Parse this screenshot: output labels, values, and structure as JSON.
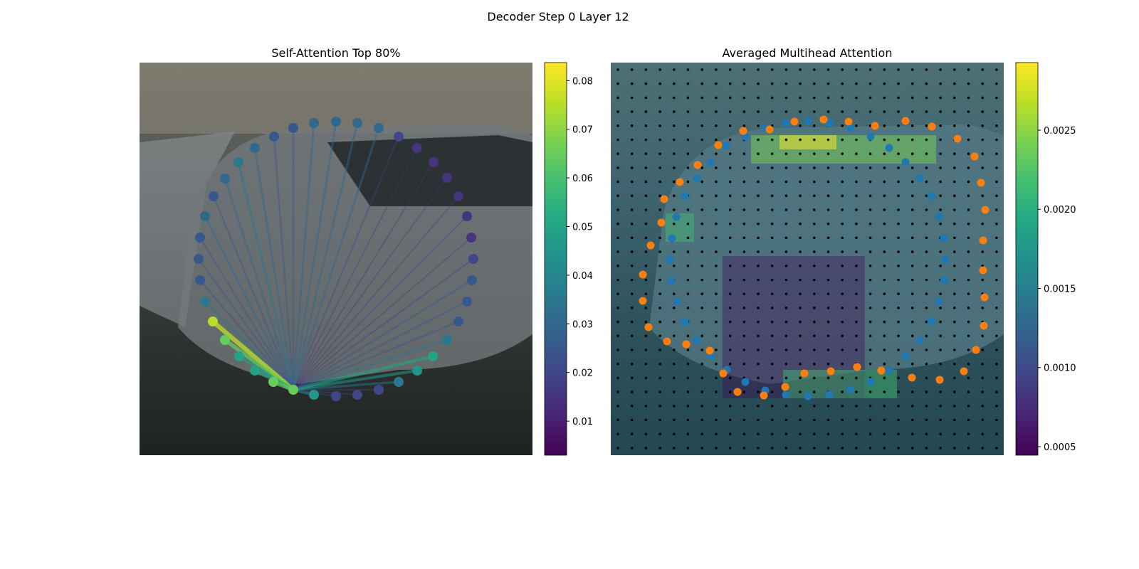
{
  "title": "Decoder Step 0 Layer 12",
  "chart_data": [
    {
      "type": "scatter",
      "title": "Self-Attention Top 80%",
      "xlim": [
        0,
        552
      ],
      "ylim": [
        552,
        0
      ],
      "x": [
        216,
        245,
        276,
        306,
        336,
        364,
        390,
        412,
        432,
        448,
        460,
        467,
        469,
        466,
        460,
        448,
        432,
        413,
        390,
        364,
        336,
        306,
        276,
        245,
        216,
        189,
        162,
        139,
        120,
        104,
        92,
        85,
        83,
        85,
        92,
        103,
        120,
        140,
        162,
        188
      ],
      "y": [
        460,
        467,
        469,
        467,
        460,
        449,
        433,
        413,
        390,
        364,
        336,
        306,
        276,
        246,
        216,
        188,
        162,
        140,
        120,
        104,
        92,
        85,
        83,
        85,
        92,
        104,
        120,
        140,
        163,
        188,
        216,
        246,
        276,
        306,
        336,
        364,
        390,
        413,
        433,
        449
      ],
      "values": [
        0.065,
        0.045,
        0.02,
        0.02,
        0.02,
        0.035,
        0.045,
        0.05,
        0.035,
        0.025,
        0.025,
        0.025,
        0.02,
        0.015,
        0.015,
        0.015,
        0.015,
        0.015,
        0.015,
        0.02,
        0.03,
        0.03,
        0.03,
        0.03,
        0.025,
        0.025,
        0.03,
        0.035,
        0.03,
        0.025,
        0.03,
        0.025,
        0.025,
        0.025,
        0.035,
        0.075,
        0.065,
        0.05,
        0.05,
        0.065
      ],
      "colormap": "viridis",
      "clim": [
        0.003,
        0.0837
      ],
      "cticks": [
        0.01,
        0.02,
        0.03,
        0.04,
        0.05,
        0.06,
        0.07,
        0.08
      ]
    },
    {
      "type": "scatter",
      "title": "Averaged Multihead Attention",
      "xlim": [
        0,
        552
      ],
      "ylim": [
        552,
        0
      ],
      "series": [
        {
          "color": "#1f77b4",
          "x": [
            162,
            140,
            121,
            104,
            92,
            86,
            83,
            85,
            93,
            104,
            121,
            141,
            163,
            189,
            217,
            246,
            277,
            307,
            337,
            365,
            391,
            414,
            434,
            450,
            461,
            468,
            470,
            468,
            461,
            450,
            434,
            414,
            391,
            365,
            337,
            307,
            277,
            246,
            217,
            189
          ],
          "y": [
            117,
            141,
            163,
            188,
            217,
            247,
            277,
            307,
            336,
            365,
            390,
            412,
            432,
            449,
            461,
            467,
            469,
            467,
            460,
            449,
            433,
            413,
            390,
            364,
            336,
            306,
            277,
            247,
            217,
            188,
            163,
            140,
            120,
            104,
            92,
            85,
            83,
            85,
            92,
            104
          ]
        },
        {
          "color": "#ff7f0e",
          "x": [
            186,
            223,
            258,
            299,
            334,
            371,
            414,
            451,
            487,
            511,
            520,
            526,
            523,
            523,
            525,
            524,
            513,
            496,
            462,
            423,
            380,
            346,
            309,
            272,
            245,
            215,
            178,
            158,
            139,
            106,
            79,
            53,
            45,
            45,
            56,
            71,
            75,
            97,
            122,
            151
          ],
          "y": [
            96,
            94,
            83,
            80,
            83,
            89,
            82,
            90,
            107,
            132,
            169,
            207,
            250,
            292,
            330,
            370,
            404,
            434,
            446,
            443,
            433,
            428,
            434,
            437,
            456,
            468,
            463,
            437,
            405,
            396,
            392,
            372,
            335,
            298,
            257,
            225,
            192,
            168,
            144,
            116
          ]
        }
      ],
      "colormap": "viridis",
      "clim": [
        0.000446,
        0.002927
      ],
      "cticks": [
        0.0005,
        {
          "value": 0.001,
          "label": "0.0010"
        },
        0.0015,
        {
          "value": 0.002,
          "label": "0.0020"
        },
        0.0025
      ]
    }
  ]
}
